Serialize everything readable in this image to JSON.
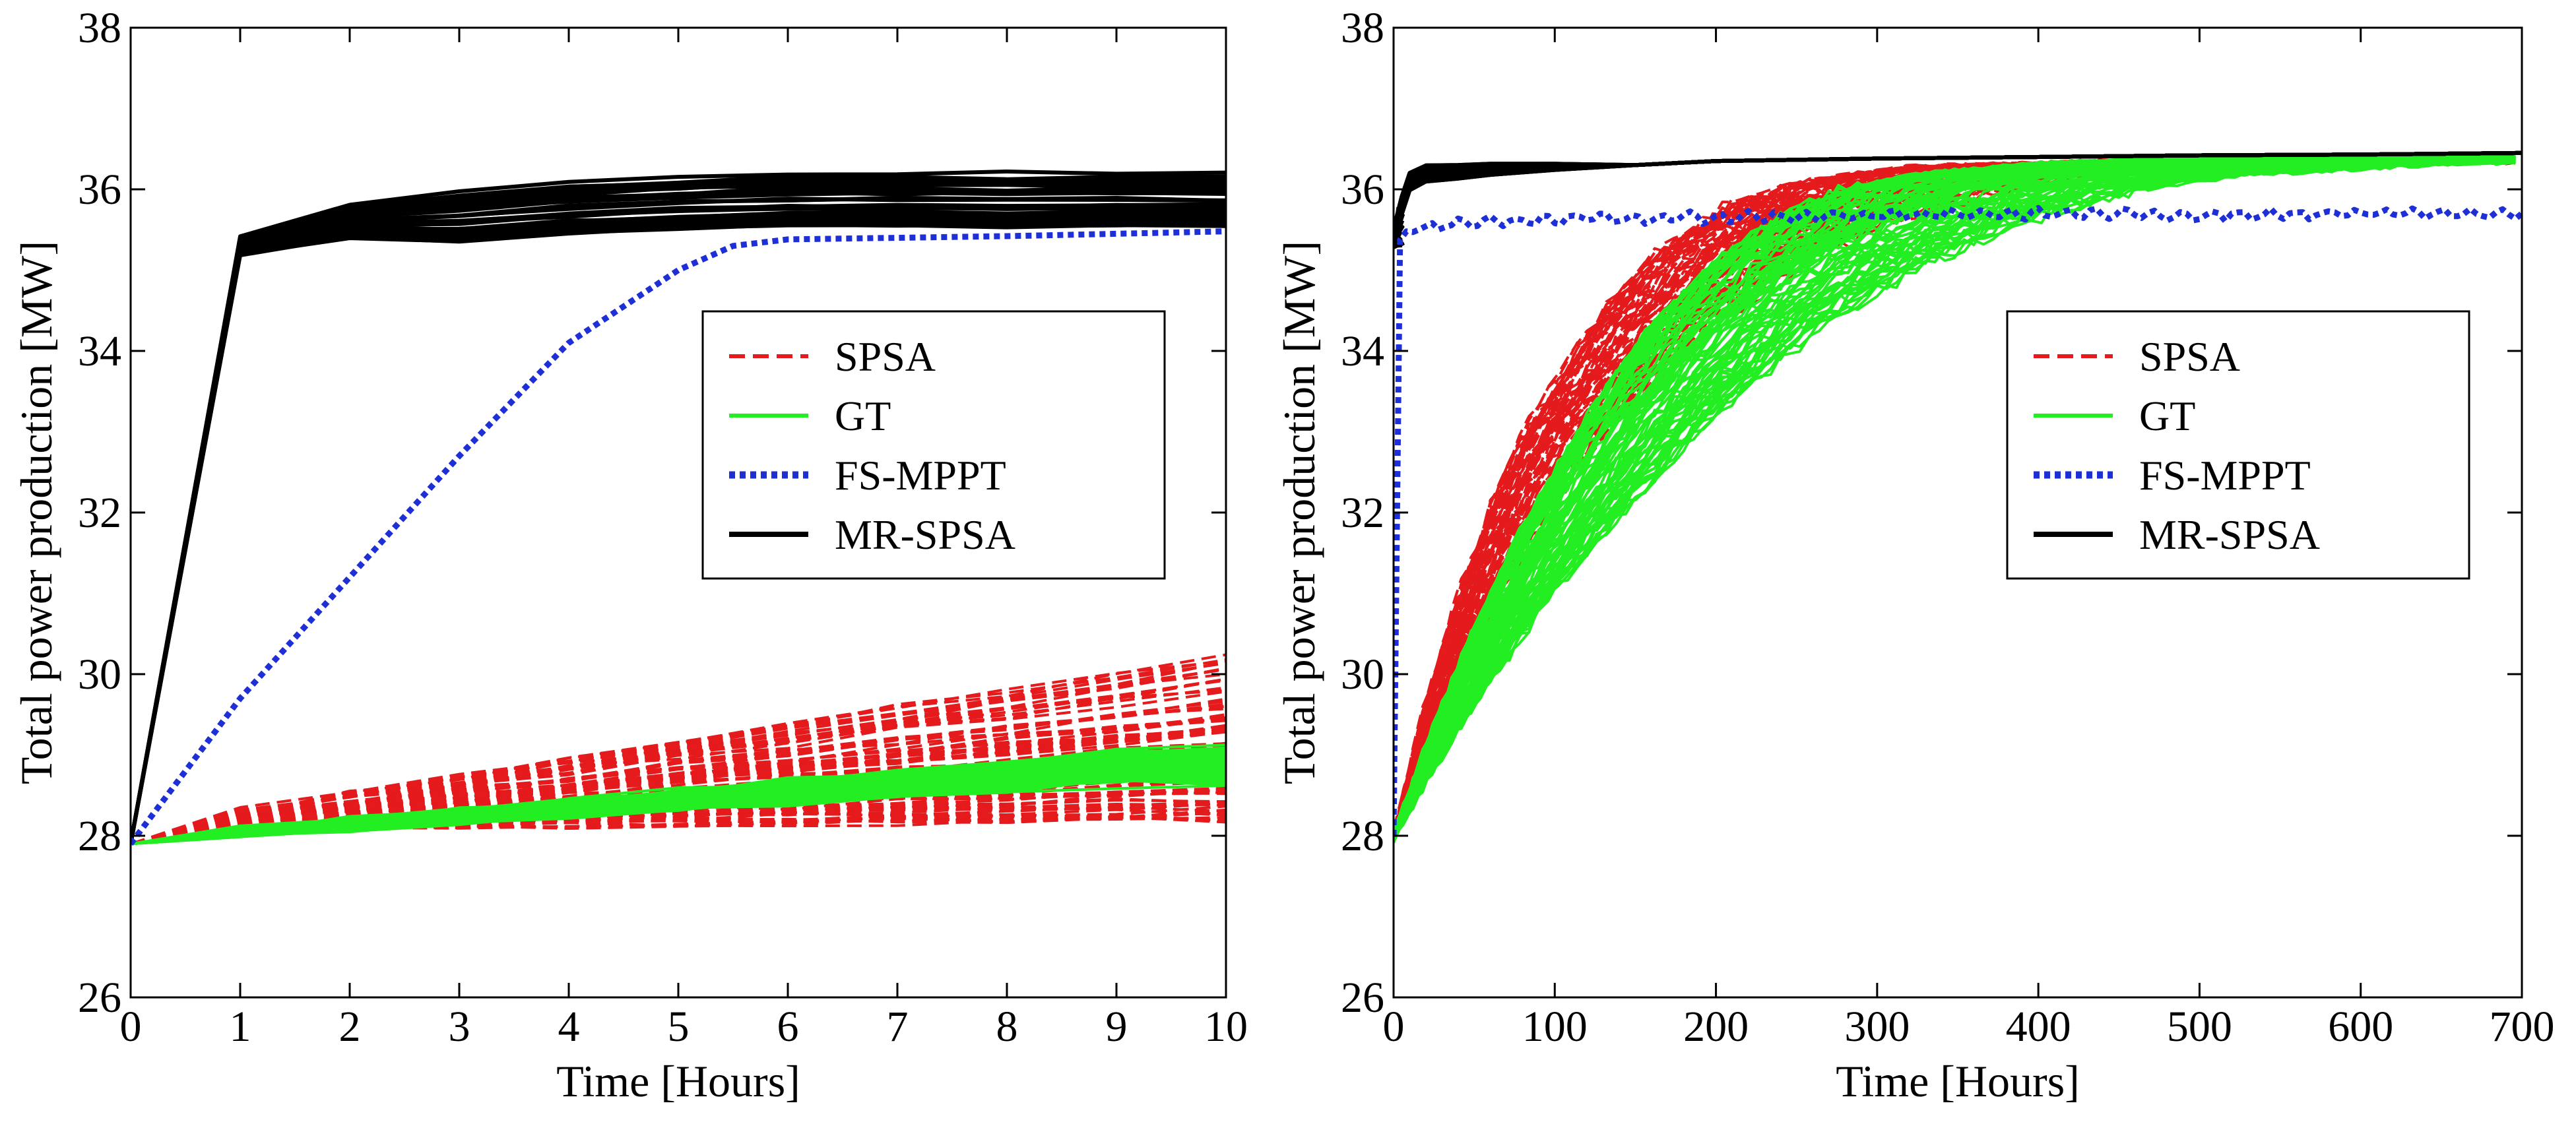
{
  "chart_data": [
    {
      "type": "line",
      "xlabel": "Time [Hours]",
      "ylabel": "Total power production [MW]",
      "xlim": [
        0,
        10
      ],
      "ylim": [
        26,
        38
      ],
      "xticks": [
        0,
        1,
        2,
        3,
        4,
        5,
        6,
        7,
        8,
        9,
        10
      ],
      "yticks": [
        26,
        28,
        30,
        32,
        34,
        36,
        38
      ],
      "grid": false,
      "legend_position": "center-right",
      "series": [
        {
          "name": "SPSA",
          "style": "dashed",
          "color": "#e41a1c",
          "representative": true,
          "x": [
            0,
            1,
            2,
            3,
            4,
            5,
            6,
            7,
            8,
            9,
            10
          ],
          "y": [
            27.9,
            28.2,
            28.3,
            28.4,
            28.5,
            28.6,
            28.7,
            28.8,
            28.9,
            29.0,
            29.1
          ],
          "band": {
            "low_end": 28.2,
            "high_end": 30.35
          }
        },
        {
          "name": "GT",
          "style": "solid",
          "color": "#22ee22",
          "representative": true,
          "x": [
            0,
            1,
            2,
            3,
            4,
            5,
            6,
            7,
            8,
            9,
            10
          ],
          "y": [
            27.9,
            28.05,
            28.15,
            28.25,
            28.35,
            28.45,
            28.55,
            28.65,
            28.75,
            28.85,
            28.9
          ],
          "band": {
            "low_end": 28.65,
            "high_end": 29.1
          }
        },
        {
          "name": "FS-MPPT",
          "style": "dotted",
          "color": "#1f2fd6",
          "x": [
            0,
            1,
            2,
            3,
            4,
            5,
            5.5,
            6,
            7,
            8,
            9,
            10
          ],
          "y": [
            27.9,
            29.7,
            31.2,
            32.7,
            34.1,
            35.0,
            35.3,
            35.38,
            35.4,
            35.42,
            35.45,
            35.48
          ]
        },
        {
          "name": "MR-SPSA",
          "style": "solid",
          "color": "#000000",
          "representative": true,
          "x": [
            0,
            1,
            2,
            3,
            4,
            5,
            6,
            7,
            8,
            9,
            10
          ],
          "y": [
            27.9,
            35.35,
            35.7,
            35.8,
            35.9,
            35.95,
            36.0,
            36.0,
            36.0,
            36.0,
            36.0
          ],
          "band": {
            "low_end": 35.55,
            "high_end": 36.2
          }
        }
      ]
    },
    {
      "type": "line",
      "xlabel": "Time [Hours]",
      "ylabel": "Total power production [MW]",
      "xlim": [
        0,
        700
      ],
      "ylim": [
        26,
        38
      ],
      "xticks": [
        0,
        100,
        200,
        300,
        400,
        500,
        600,
        700
      ],
      "yticks": [
        26,
        28,
        30,
        32,
        34,
        36,
        38
      ],
      "grid": false,
      "legend_position": "center-right",
      "series": [
        {
          "name": "SPSA",
          "style": "dashed",
          "color": "#e41a1c",
          "representative": true,
          "x": [
            0,
            25,
            50,
            75,
            100,
            150,
            200,
            250,
            300,
            350,
            400,
            500,
            600,
            700
          ],
          "y": [
            28.0,
            29.7,
            31.0,
            32.1,
            33.0,
            34.3,
            35.2,
            35.75,
            36.05,
            36.2,
            36.28,
            36.33,
            36.36,
            36.38
          ],
          "spread": 0.8
        },
        {
          "name": "GT",
          "style": "solid",
          "color": "#22ee22",
          "representative": true,
          "x": [
            0,
            25,
            50,
            75,
            100,
            150,
            200,
            250,
            300,
            350,
            400,
            500,
            600,
            700
          ],
          "y": [
            28.0,
            29.1,
            30.1,
            31.0,
            31.8,
            33.2,
            34.3,
            35.1,
            35.65,
            36.0,
            36.18,
            36.32,
            36.37,
            36.4
          ],
          "spread": 0.6
        },
        {
          "name": "FS-MPPT",
          "style": "dotted",
          "color": "#1f2fd6",
          "x": [
            0,
            3,
            5,
            10,
            50,
            100,
            200,
            300,
            400,
            500,
            600,
            700
          ],
          "y": [
            28.0,
            35.3,
            35.45,
            35.5,
            35.6,
            35.63,
            35.65,
            35.68,
            35.7,
            35.68,
            35.7,
            35.7
          ]
        },
        {
          "name": "MR-SPSA",
          "style": "solid",
          "color": "#000000",
          "representative": true,
          "x": [
            0,
            5,
            10,
            20,
            40,
            60,
            100,
            150,
            200,
            300,
            400,
            500,
            600,
            700
          ],
          "y": [
            35.4,
            35.8,
            36.1,
            36.2,
            36.22,
            36.25,
            36.28,
            36.3,
            36.35,
            36.38,
            36.4,
            36.42,
            36.43,
            36.45
          ],
          "band": {
            "low_end": 36.3,
            "high_end": 36.5
          }
        }
      ]
    }
  ]
}
